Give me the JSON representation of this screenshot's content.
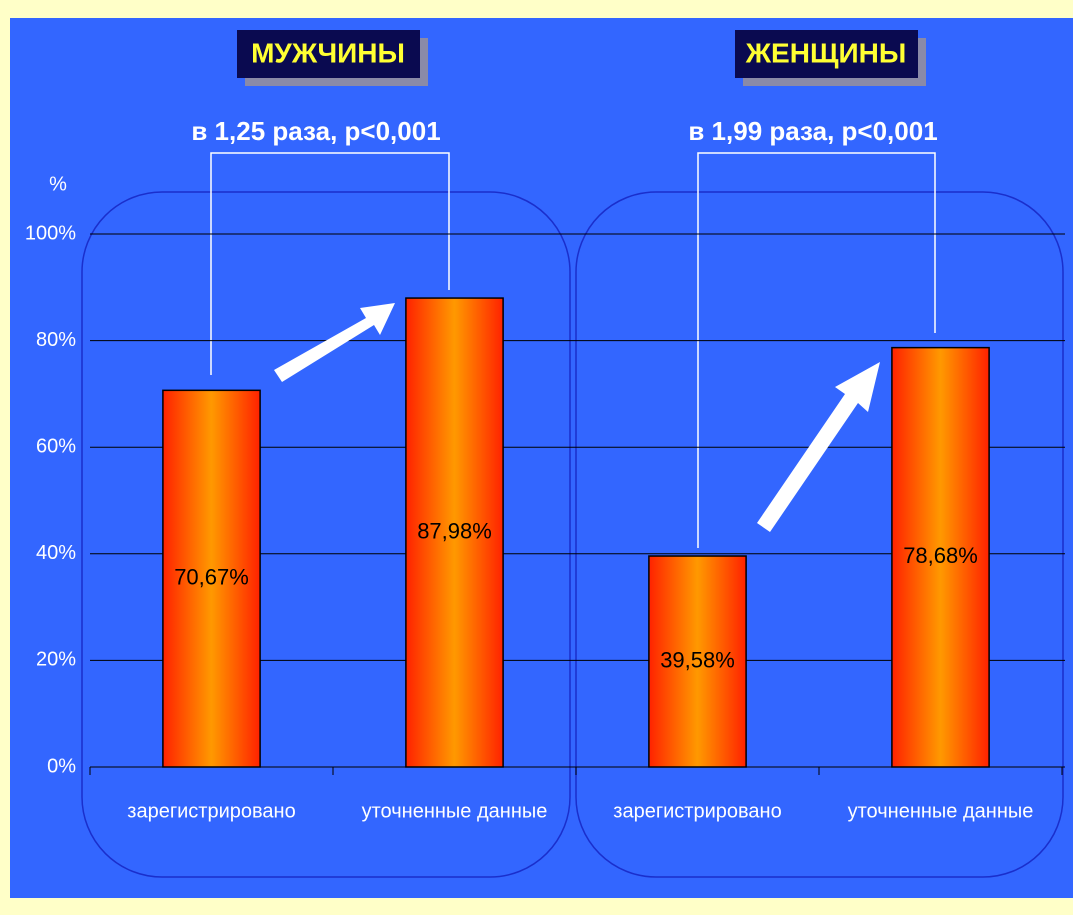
{
  "chart_data": {
    "type": "bar",
    "y_label": "%",
    "groups": [
      {
        "title": "МУЖЧИНЫ",
        "annotation": "в 1,25 раза, p<0,001"
      },
      {
        "title": "ЖЕНЩИНЫ",
        "annotation": "в 1,99 раза, p<0,001"
      }
    ],
    "categories": [
      "зарегистрировано",
      "уточненные данные",
      "зарегистрировано",
      "уточненные данные"
    ],
    "values": [
      70.67,
      87.98,
      39.58,
      78.68
    ],
    "value_labels": [
      "70,67%",
      "87,98%",
      "39,58%",
      "78,68%"
    ],
    "color": "#ff9900",
    "ylim": [
      0,
      100
    ],
    "yticks": [
      {
        "value": 0,
        "label": "0%"
      },
      {
        "value": 20,
        "label": "20%"
      },
      {
        "value": 40,
        "label": "40%"
      },
      {
        "value": 60,
        "label": "60%"
      },
      {
        "value": 80,
        "label": "80%"
      },
      {
        "value": 100,
        "label": "100%"
      }
    ],
    "grid": true
  }
}
